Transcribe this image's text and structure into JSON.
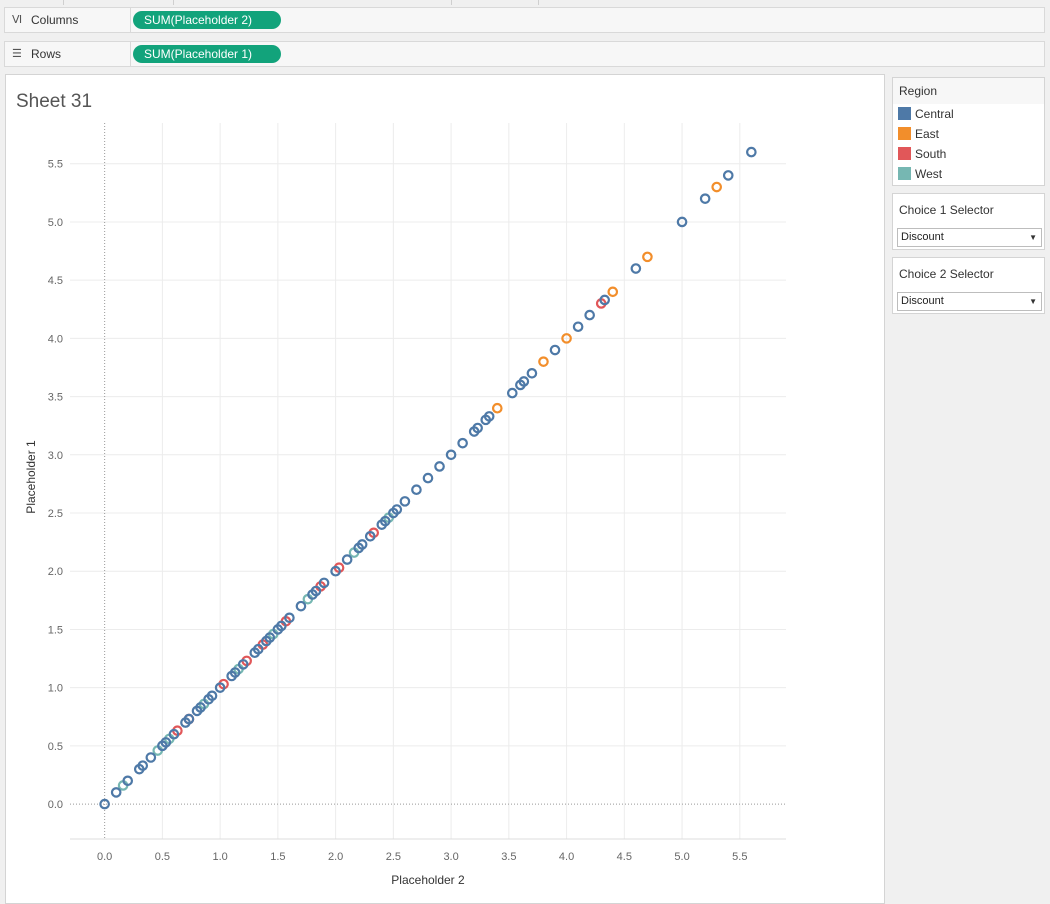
{
  "shelves": {
    "columns": {
      "icon": "columns-icon",
      "label": "Columns",
      "pill": "SUM(Placeholder 2)"
    },
    "rows": {
      "icon": "rows-icon",
      "label": "Rows",
      "pill": "SUM(Placeholder 1)"
    }
  },
  "sheet": {
    "title": "Sheet 31"
  },
  "legend": {
    "title": "Region",
    "items": [
      {
        "label": "Central",
        "color": "#4e79a7"
      },
      {
        "label": "East",
        "color": "#f28e2b"
      },
      {
        "label": "South",
        "color": "#e15759"
      },
      {
        "label": "West",
        "color": "#76b7b2"
      }
    ]
  },
  "choice1": {
    "title": "Choice 1 Selector",
    "value": "Discount"
  },
  "choice2": {
    "title": "Choice 2 Selector",
    "value": "Discount"
  },
  "chart_data": {
    "type": "scatter",
    "xlabel": "Placeholder 2",
    "ylabel": "Placeholder 1",
    "xlim": [
      -0.3,
      5.9
    ],
    "ylim": [
      -0.3,
      5.85
    ],
    "x_ticks": [
      "0.0",
      "0.5",
      "1.0",
      "1.5",
      "2.0",
      "2.5",
      "3.0",
      "3.5",
      "4.0",
      "4.5",
      "5.0",
      "5.5"
    ],
    "y_ticks": [
      "0.0",
      "0.5",
      "1.0",
      "1.5",
      "2.0",
      "2.5",
      "3.0",
      "3.5",
      "4.0",
      "4.5",
      "5.0",
      "5.5"
    ],
    "grid": true,
    "legend_position": "right",
    "series": [
      {
        "name": "Central",
        "color": "#4e79a7",
        "values": [
          0,
          0.1,
          0.2,
          0.3,
          0.33,
          0.4,
          0.5,
          0.53,
          0.6,
          0.7,
          0.73,
          0.8,
          0.83,
          0.9,
          0.93,
          1.0,
          1.1,
          1.13,
          1.2,
          1.3,
          1.33,
          1.4,
          1.43,
          1.5,
          1.53,
          1.6,
          1.7,
          1.8,
          1.83,
          1.9,
          2.0,
          2.1,
          2.2,
          2.23,
          2.3,
          2.4,
          2.43,
          2.5,
          2.53,
          2.6,
          2.7,
          2.8,
          2.9,
          3.0,
          3.1,
          3.2,
          3.23,
          3.3,
          3.33,
          3.53,
          3.6,
          3.63,
          3.7,
          3.9,
          4.1,
          4.2,
          4.33,
          4.6,
          5.0,
          5.2,
          5.4,
          5.6
        ]
      },
      {
        "name": "East",
        "color": "#f28e2b",
        "values": [
          3.4,
          3.8,
          4.0,
          4.4,
          4.7,
          5.3
        ]
      },
      {
        "name": "South",
        "color": "#e15759",
        "values": [
          0.63,
          0.73,
          1.03,
          1.23,
          1.37,
          1.57,
          1.87,
          2.03,
          2.33,
          4.3
        ]
      },
      {
        "name": "West",
        "color": "#76b7b2",
        "values": [
          0.16,
          0.46,
          0.56,
          0.86,
          1.16,
          1.46,
          1.76,
          2.16,
          2.46
        ]
      }
    ]
  }
}
